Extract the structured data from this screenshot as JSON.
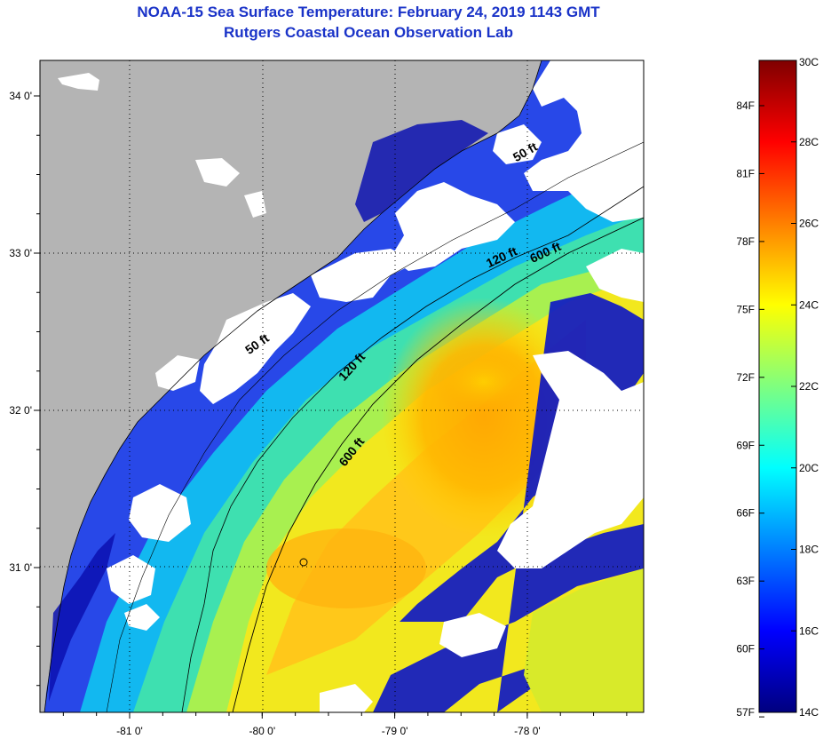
{
  "title": "NOAA-15 Sea Surface Temperature:  February 24, 2019 1143 GMT",
  "subtitle": "Rutgers Coastal Ocean Observation Lab",
  "lat_ticks": [
    {
      "label": "34 0'",
      "lat": 34
    },
    {
      "label": "33 0'",
      "lat": 33
    },
    {
      "label": "32 0'",
      "lat": 32
    },
    {
      "label": "31 0'",
      "lat": 31
    }
  ],
  "lon_ticks": [
    {
      "label": "-81 0'",
      "lon": -81
    },
    {
      "label": "-80 0'",
      "lon": -80
    },
    {
      "label": "-79 0'",
      "lon": -79
    },
    {
      "label": "-78 0'",
      "lon": -78
    }
  ],
  "contour_labels": [
    {
      "text": "50 ft",
      "lon": -80.02,
      "lat": 32.4,
      "angle": -35
    },
    {
      "text": "120 ft",
      "lon": -79.3,
      "lat": 32.26,
      "angle": -48
    },
    {
      "text": "120 ft",
      "lon": -78.18,
      "lat": 32.95,
      "angle": -25
    },
    {
      "text": "600 ft",
      "lon": -79.3,
      "lat": 31.72,
      "angle": -52
    },
    {
      "text": "600 ft",
      "lon": -77.85,
      "lat": 32.98,
      "angle": -25
    },
    {
      "text": "50 ft",
      "lon": -78.0,
      "lat": 33.62,
      "angle": -30
    }
  ],
  "colorbar": {
    "celsius": [
      "30C",
      "28C",
      "26C",
      "24C",
      "22C",
      "20C",
      "18C",
      "16C",
      "14C"
    ],
    "fahrenheit": [
      "84F",
      "81F",
      "78F",
      "75F",
      "72F",
      "69F",
      "66F",
      "63F",
      "60F",
      "57F"
    ]
  },
  "colors": {
    "title": "#1a33c8",
    "land": "#b4b4b4",
    "cloud": "#ffffff",
    "grid": "#000000"
  }
}
